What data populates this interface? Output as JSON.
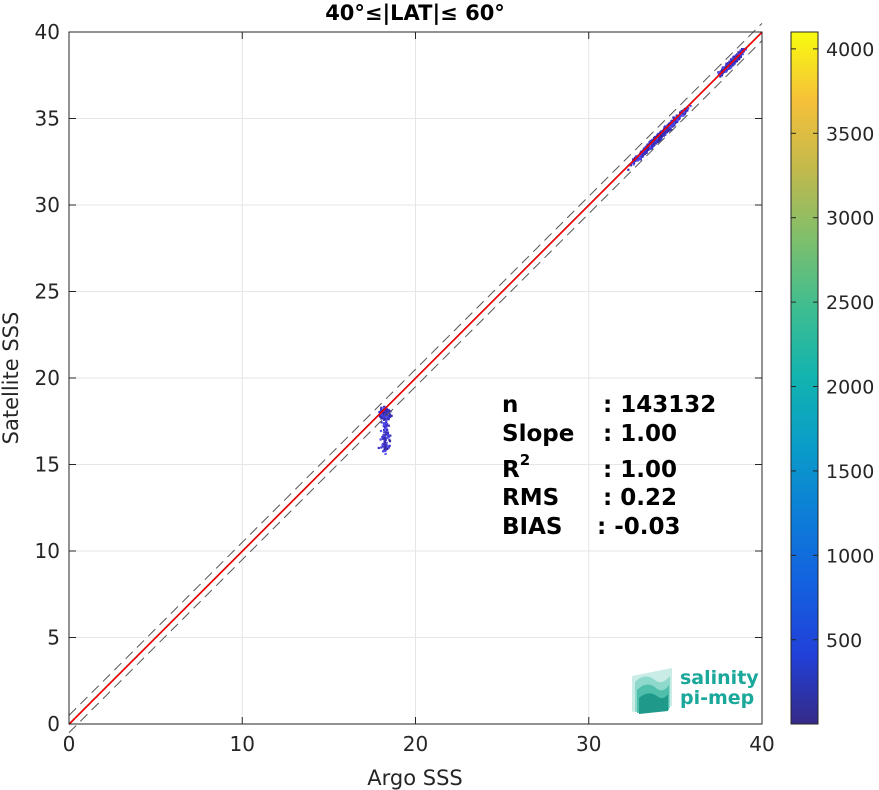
{
  "chart_data": {
    "type": "heatmap",
    "title": "40°≤|LAT|≤ 60°",
    "xlabel": "Argo SSS",
    "ylabel": "Satellite SSS",
    "xlim": [
      0,
      40
    ],
    "ylim": [
      0,
      40
    ],
    "xticks": [
      "0",
      "10",
      "20",
      "30",
      "40"
    ],
    "yticks": [
      "0",
      "5",
      "10",
      "15",
      "20",
      "25",
      "30",
      "35",
      "40"
    ],
    "grid": true,
    "lines": [
      {
        "name": "identity",
        "color": "#8b0000",
        "style": "solid",
        "points": [
          [
            0,
            0
          ],
          [
            40,
            40
          ]
        ]
      },
      {
        "name": "regression",
        "color": "#ff0000",
        "style": "solid",
        "points": [
          [
            0,
            -0.03
          ],
          [
            40,
            39.97
          ]
        ]
      },
      {
        "name": "upper bound",
        "color": "#555555",
        "style": "dashed",
        "points": [
          [
            0,
            0.5
          ],
          [
            40,
            40.5
          ]
        ]
      },
      {
        "name": "lower bound",
        "color": "#555555",
        "style": "dashed",
        "points": [
          [
            0,
            -0.5
          ],
          [
            40,
            39.5
          ]
        ]
      }
    ],
    "density_clusters": [
      {
        "x_range": [
          17.0,
          19.2
        ],
        "y_range": [
          14.5,
          19.2
        ],
        "center": [
          18.2,
          18.0
        ]
      },
      {
        "x_range": [
          31.0,
          36.5
        ],
        "y_range": [
          30.5,
          36.5
        ],
        "center": [
          34.0,
          34.0
        ]
      },
      {
        "x_range": [
          36.8,
          39.5
        ],
        "y_range": [
          36.8,
          39.5
        ],
        "center": [
          38.2,
          38.3
        ]
      }
    ],
    "stats": [
      {
        "label": "n",
        "value": ": 143132"
      },
      {
        "label": "Slope",
        "value": ": 1.00"
      },
      {
        "label": "R",
        "sup": "2",
        "value": ": 1.00"
      },
      {
        "label": "RMS",
        "value": ": 0.22"
      },
      {
        "label": "BIAS",
        "value": ": -0.03"
      }
    ],
    "colorbar": {
      "colormap": "parula",
      "range": [
        1,
        4100
      ],
      "ticks": [
        "500",
        "1000",
        "1500",
        "2000",
        "2500",
        "3000",
        "3500",
        "4000"
      ]
    }
  },
  "logo": {
    "line1": "salinity",
    "line2": "pi-mep"
  }
}
